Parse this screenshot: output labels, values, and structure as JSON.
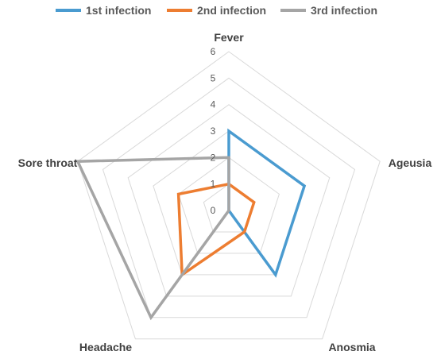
{
  "chart_data": {
    "type": "radar",
    "categories": [
      "Fever",
      "Ageusia",
      "Anosmia",
      "Headache",
      "Sore throat"
    ],
    "rlim": [
      0,
      6
    ],
    "ticks": [
      "0",
      "1",
      "2",
      "3",
      "4",
      "5",
      "6"
    ],
    "grid": true,
    "legend_position": "top",
    "series": [
      {
        "name": "1st infection",
        "color": "#4A9BD0",
        "values": [
          3,
          3,
          3,
          0,
          0
        ]
      },
      {
        "name": "2nd infection",
        "color": "#ED7D31",
        "values": [
          1,
          1,
          1,
          3,
          2
        ]
      },
      {
        "name": "3rd infection",
        "color": "#A5A5A5",
        "values": [
          2,
          0,
          0,
          5,
          6
        ]
      }
    ]
  }
}
